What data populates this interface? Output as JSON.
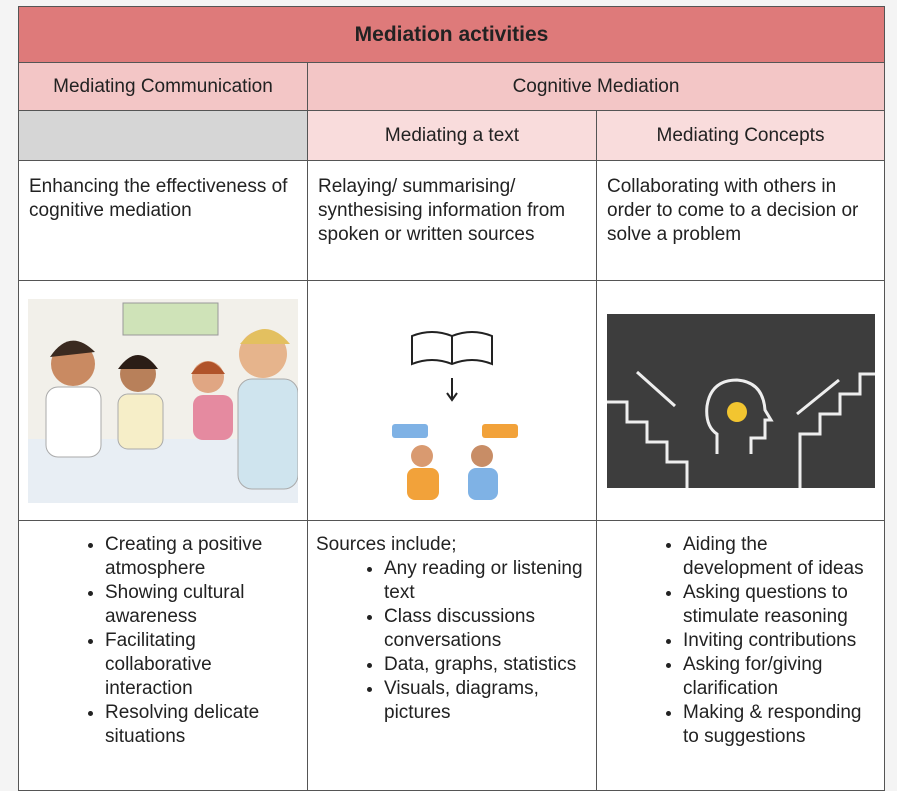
{
  "table": {
    "title": "Mediation activities",
    "header": [
      "Mediating Communication",
      "Cognitive Mediation"
    ],
    "subheader": [
      "Mediating a text",
      "Mediating Concepts"
    ],
    "descriptions": [
      "Enhancing the effectiveness of cognitive mediation",
      "Relaying/ summarising/ synthesising information from spoken or written sources",
      "Collaborating with others in order to come to a decision or solve a problem"
    ],
    "lists": [
      {
        "items": [
          "Creating a positive atmosphere",
          "Showing cultural awareness",
          "Facilitating collaborative interaction",
          "Resolving delicate situations"
        ]
      },
      {
        "intro": "Sources include;",
        "items": [
          "Any reading or listening text",
          "Class discussions conversations",
          "Data, graphs, statistics",
          "Visuals, diagrams, pictures"
        ]
      },
      {
        "items": [
          "Aiding the development of ideas",
          "Asking questions to stimulate reasoning",
          "Inviting contributions",
          "Asking for/giving clarification",
          "Making & responding to suggestions"
        ]
      }
    ]
  }
}
